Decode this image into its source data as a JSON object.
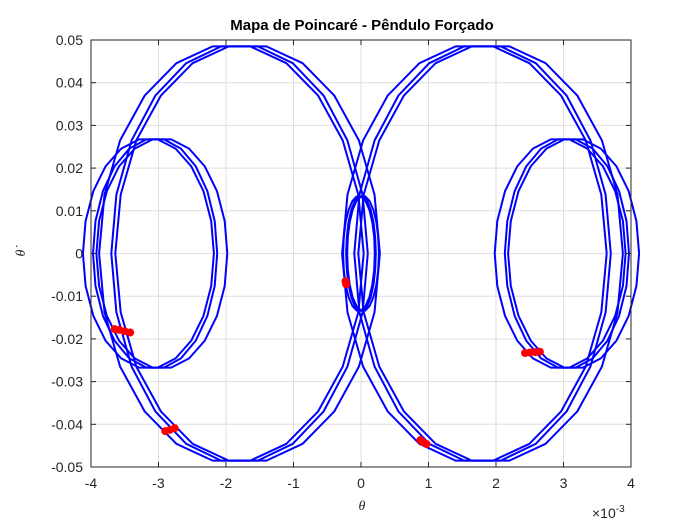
{
  "chart_data": {
    "type": "line",
    "title": "Mapa de Poincaré - Pêndulo Forçado",
    "xlabel": "θ",
    "ylabel": "θ̇",
    "x_multiplier_base": "×10",
    "x_multiplier_exp": "-3",
    "xlim": [
      -0.004,
      0.004
    ],
    "ylim": [
      -0.05,
      0.05
    ],
    "xticks": [
      -0.004,
      -0.003,
      -0.002,
      -0.001,
      0,
      0.001,
      0.002,
      0.003,
      0.004
    ],
    "xtick_labels": [
      "-4",
      "-3",
      "-2",
      "-1",
      "0",
      "1",
      "2",
      "3",
      "4"
    ],
    "yticks": [
      -0.05,
      -0.04,
      -0.03,
      -0.02,
      -0.01,
      0,
      0.01,
      0.02,
      0.03,
      0.04,
      0.05
    ],
    "ytick_labels": [
      "-0.05",
      "-0.04",
      "-0.03",
      "-0.02",
      "-0.01",
      "0",
      "0.01",
      "0.02",
      "0.03",
      "0.04",
      "0.05"
    ],
    "grid": true,
    "trajectory_color": "#0000ff",
    "poincare_color": "#ff0000",
    "curves": [
      {
        "kind": "ellipse",
        "cx": -0.00305,
        "cy": 0.0,
        "rx": 0.00092,
        "ry": 0.027,
        "offsets": [
          -0.0001,
          0.0,
          0.0001
        ]
      },
      {
        "kind": "ellipse",
        "cx": 0.00305,
        "cy": 0.0,
        "rx": 0.00092,
        "ry": 0.027,
        "offsets": [
          -0.0001,
          0.0,
          0.0001
        ]
      },
      {
        "kind": "figure8",
        "cx": -0.0018,
        "cy": 0.0,
        "rx": 0.0019,
        "ry": 0.049,
        "offsets": [
          -0.00012,
          0.0,
          0.00012
        ]
      },
      {
        "kind": "figure8",
        "cx": 0.0018,
        "cy": 0.0,
        "rx": 0.0019,
        "ry": 0.049,
        "offsets": [
          -0.00012,
          0.0,
          0.00012
        ]
      },
      {
        "kind": "ellipse",
        "cx": 0.0,
        "cy": 0.0,
        "rx": 0.00022,
        "ry": 0.0135,
        "offsets": [
          -3e-05,
          0.0,
          3e-05
        ]
      }
    ],
    "poincare_points": [
      {
        "x": -0.00365,
        "y": -0.0177
      },
      {
        "x": -0.00358,
        "y": -0.0179
      },
      {
        "x": -0.0035,
        "y": -0.0182
      },
      {
        "x": -0.00342,
        "y": -0.0185
      },
      {
        "x": -0.0029,
        "y": -0.0416
      },
      {
        "x": -0.00283,
        "y": -0.0413
      },
      {
        "x": -0.00276,
        "y": -0.0409
      },
      {
        "x": -0.00023,
        "y": -0.0065
      },
      {
        "x": -0.00022,
        "y": -0.0072
      },
      {
        "x": 0.00088,
        "y": -0.0437
      },
      {
        "x": 0.00092,
        "y": -0.0442
      },
      {
        "x": 0.00097,
        "y": -0.0446
      },
      {
        "x": 0.00243,
        "y": -0.0233
      },
      {
        "x": 0.0025,
        "y": -0.0232
      },
      {
        "x": 0.00258,
        "y": -0.0231
      },
      {
        "x": 0.00265,
        "y": -0.023
      }
    ]
  }
}
